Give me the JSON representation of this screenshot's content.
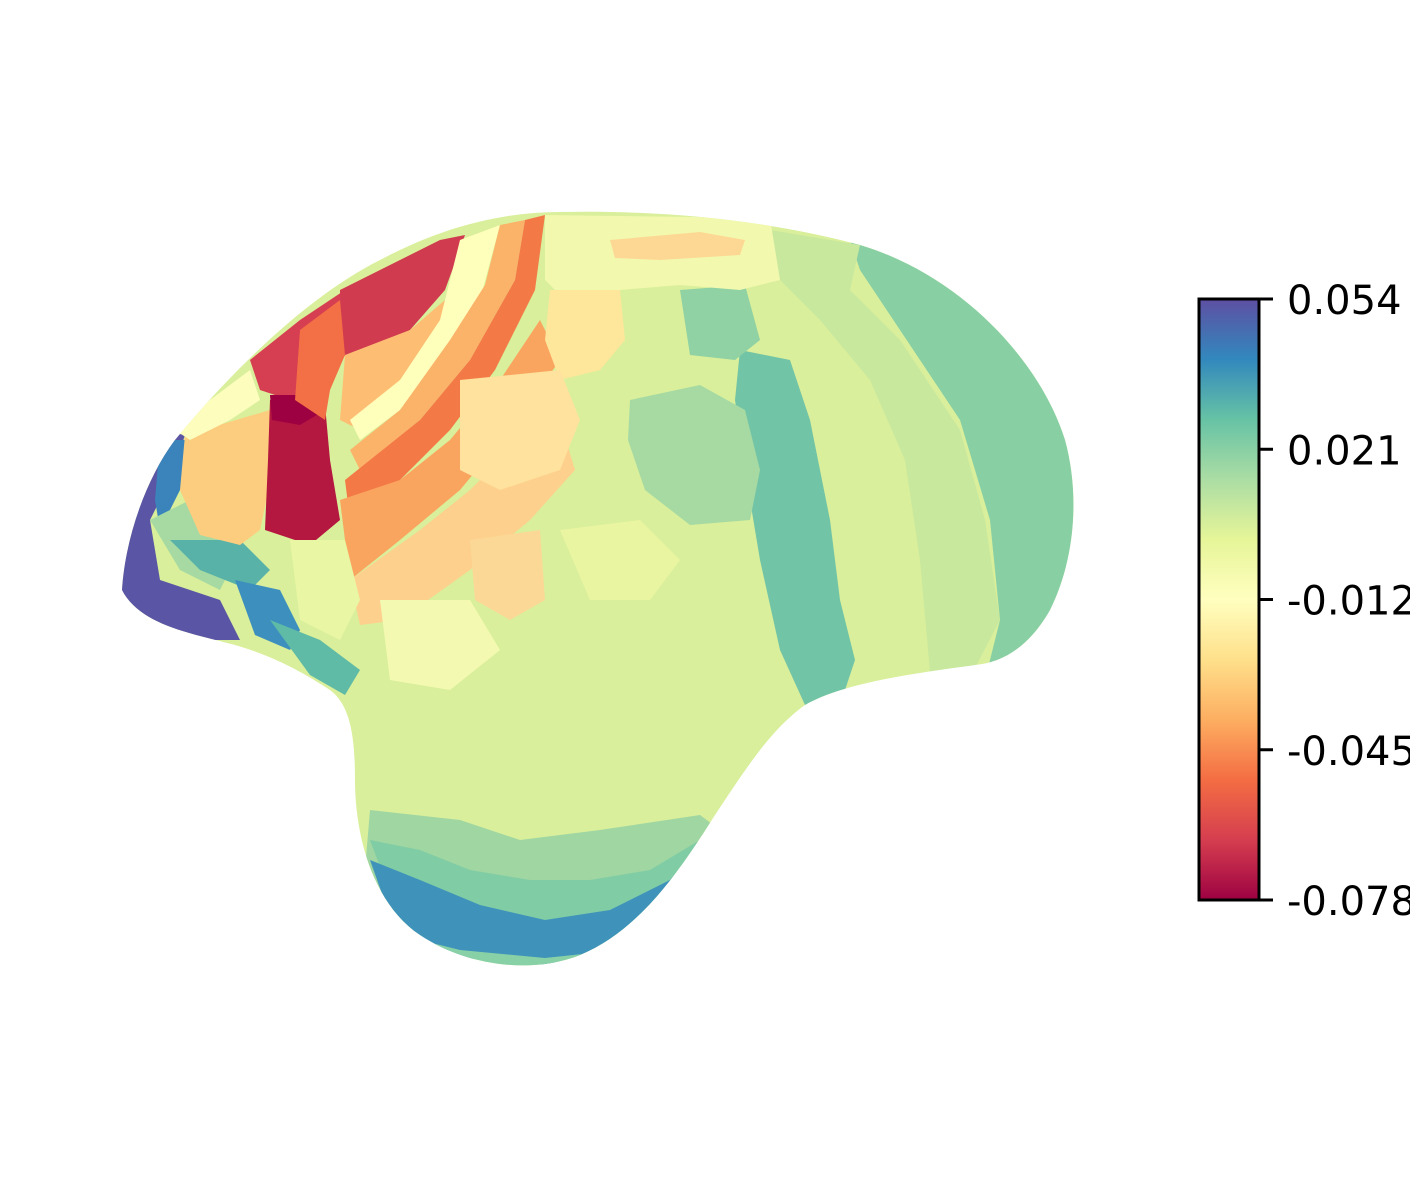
{
  "figure": {
    "colorbar": {
      "colormap_name": "Spectral",
      "ticks": [
        {
          "value": 0.054,
          "label": "0.054"
        },
        {
          "value": 0.021,
          "label": "0.021"
        },
        {
          "value": -0.012,
          "label": "-0.012"
        },
        {
          "value": -0.045,
          "label": "-0.045"
        },
        {
          "value": -0.078,
          "label": "-0.078"
        }
      ],
      "range": [
        -0.078,
        0.054
      ],
      "stops": [
        "#9e0142",
        "#d53e4f",
        "#f46d43",
        "#fdae61",
        "#fee08b",
        "#ffffbf",
        "#e6f598",
        "#abdda4",
        "#66c2a5",
        "#3288bd",
        "#5e4fa2"
      ]
    },
    "surface": {
      "description_colors": {
        "background": "#ffffff",
        "base_fill": "#d9ef9b"
      }
    }
  }
}
